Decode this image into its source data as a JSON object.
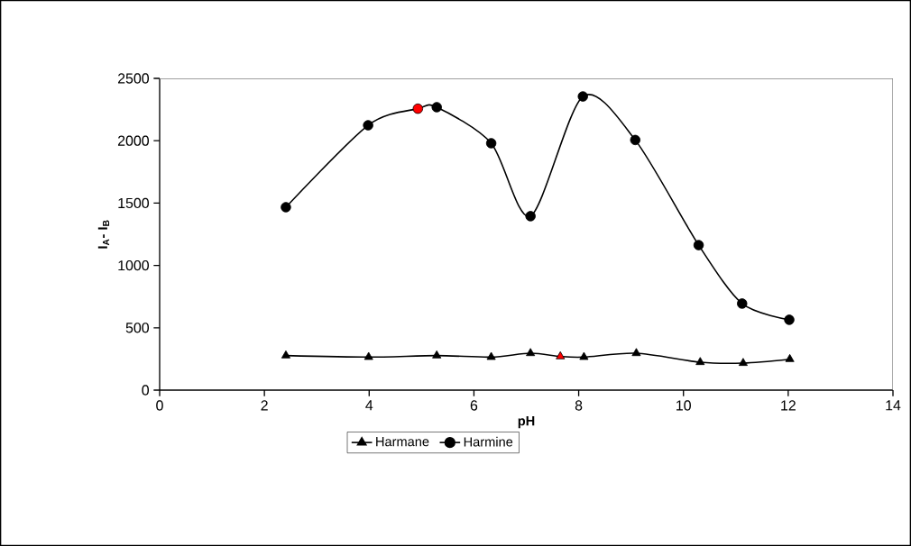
{
  "chart_data": {
    "type": "line",
    "xlabel": "pH",
    "ylabel": "I$_{A}$- I$_{B}$",
    "xlim": [
      0,
      14
    ],
    "xticks": [
      0,
      2,
      4,
      6,
      8,
      10,
      12,
      14
    ],
    "ylim": [
      0,
      2500
    ],
    "yticks": [
      0,
      500,
      1000,
      1500,
      2000,
      2500
    ],
    "legend": "bottom",
    "series": [
      {
        "name": "Harmane",
        "color": "#000000",
        "marker": "triangle",
        "x": [
          2.41,
          3.99,
          5.29,
          6.33,
          7.08,
          7.65,
          8.1,
          9.1,
          10.32,
          11.14,
          12.03
        ],
        "values": [
          277,
          265,
          277,
          265,
          296,
          270,
          265,
          296,
          224,
          217,
          248
        ],
        "colors": [
          "#000000",
          "#000000",
          "#000000",
          "#000000",
          "#000000",
          "#ff0000",
          "#000000",
          "#000000",
          "#000000",
          "#000000",
          "#000000"
        ]
      },
      {
        "name": "Harmine",
        "color": "#000000",
        "marker": "circle",
        "x": [
          2.41,
          3.98,
          4.93,
          5.29,
          6.33,
          7.08,
          8.08,
          9.08,
          10.29,
          11.12,
          12.02
        ],
        "values": [
          1467,
          2124,
          2257,
          2269,
          1980,
          1395,
          2355,
          2006,
          1163,
          694,
          564
        ],
        "colors": [
          "#000000",
          "#000000",
          "#ff0000",
          "#000000",
          "#000000",
          "#000000",
          "#000000",
          "#000000",
          "#000000",
          "#000000",
          "#000000"
        ]
      }
    ]
  }
}
